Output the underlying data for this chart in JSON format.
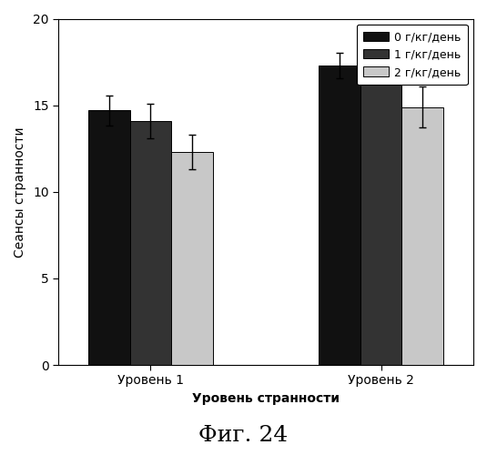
{
  "groups": [
    "Уровень 1",
    "Уровень 2"
  ],
  "series": [
    {
      "label": "0 г/кг/день",
      "color": "#111111",
      "values": [
        14.7,
        17.3
      ],
      "errors": [
        0.85,
        0.75
      ]
    },
    {
      "label": "1 г/кг/день",
      "color": "#333333",
      "values": [
        14.1,
        17.3
      ],
      "errors": [
        1.0,
        0.65
      ]
    },
    {
      "label": "2 г/кг/день",
      "color": "#c8c8c8",
      "values": [
        12.3,
        14.9
      ],
      "errors": [
        1.0,
        1.2
      ]
    }
  ],
  "ylabel": "Сеансы странности",
  "xlabel": "Уровень странности",
  "title": "Фиг. 24",
  "ylim": [
    0,
    20
  ],
  "yticks": [
    0,
    5,
    10,
    15,
    20
  ],
  "bar_width": 0.18,
  "group_positions": [
    1.0,
    2.0
  ],
  "background_color": "#ffffff",
  "legend_edgecolor": "#000000"
}
